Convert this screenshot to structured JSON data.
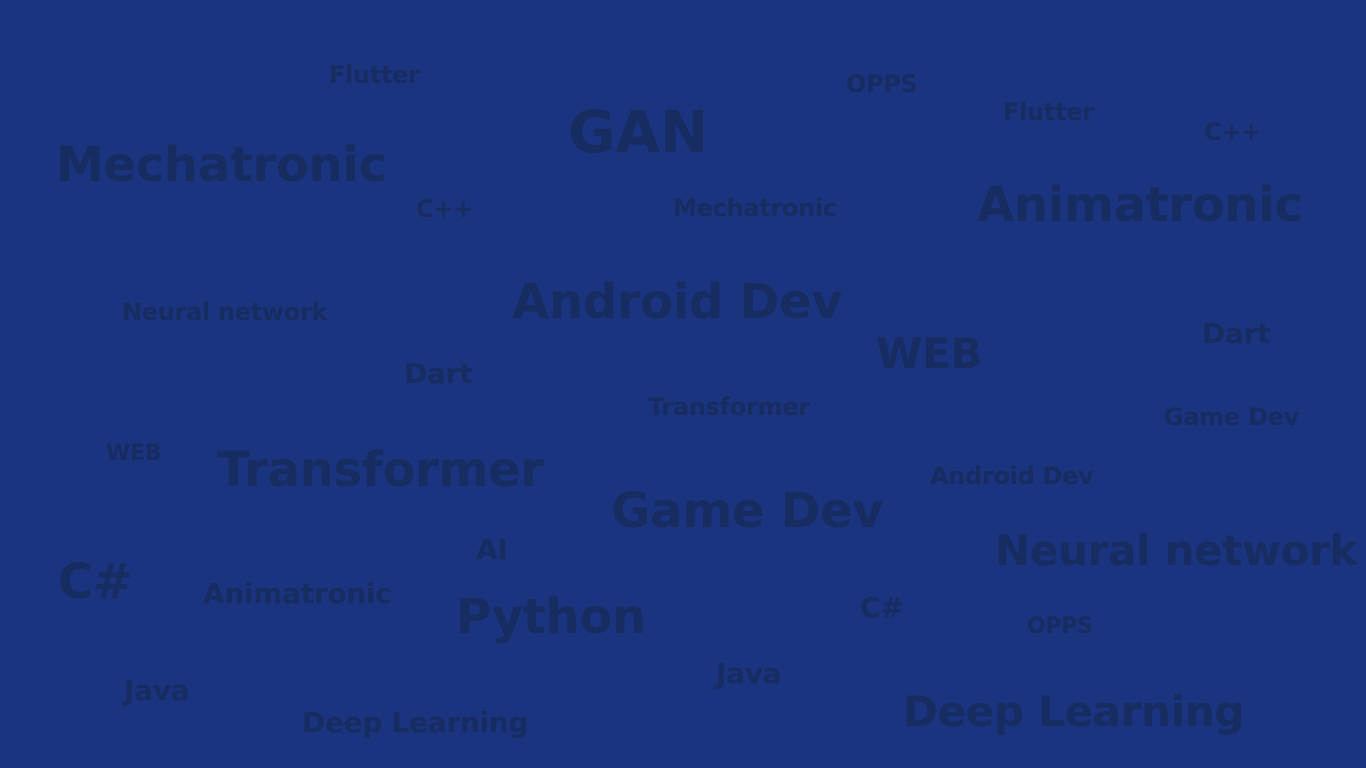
{
  "colors": {
    "background": "#1b3480",
    "word_text": "#172c60"
  },
  "words": {
    "w01": "Flutter",
    "w02": "OPPS",
    "w03": "Flutter",
    "w04": "C++",
    "w05": "GAN",
    "w06": "Mechatronic",
    "w07": "C++",
    "w08": "Mechatronic",
    "w09": "Animatronic",
    "w10": "Android Dev",
    "w11": "Neural network",
    "w12": "WEB",
    "w13": "Dart",
    "w14": "Dart",
    "w15": "Transformer",
    "w16": "Game Dev",
    "w17": "WEB",
    "w18": "Transformer",
    "w19": "Android Dev",
    "w20": "Game Dev",
    "w21": "Neural network",
    "w22": "AI",
    "w23": "C#",
    "w24": "Animatronic",
    "w25": "Python",
    "w26": "C#",
    "w27": "OPPS",
    "w28": "Java",
    "w29": "Java",
    "w30": "Deep Learning",
    "w31": "Deep Learning"
  }
}
